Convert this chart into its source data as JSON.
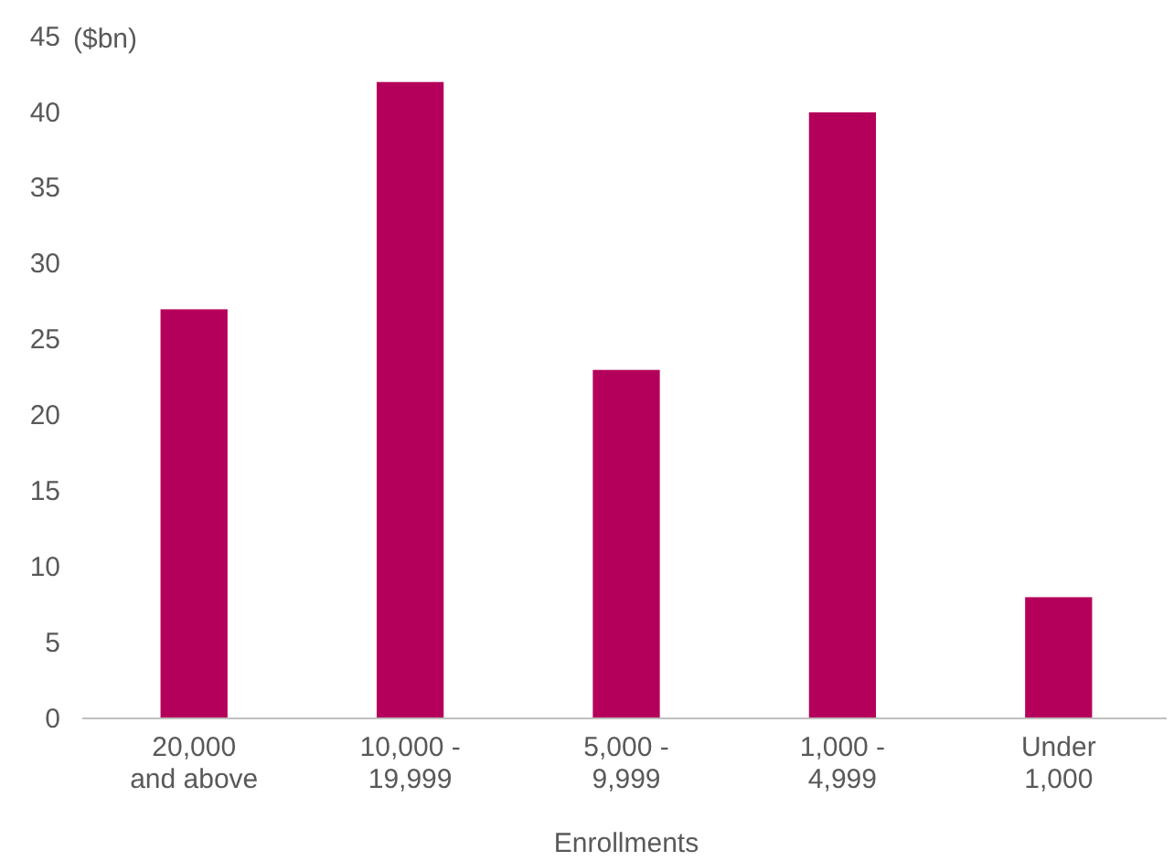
{
  "chart_data": {
    "type": "bar",
    "ylabel": "($bn)",
    "xlabel": "Enrollments",
    "categories": [
      "20,000\nand above",
      "10,000 -\n19,999",
      "5,000 -\n9,999",
      "1,000 -\n4,999",
      "Under\n1,000"
    ],
    "values": [
      27,
      42,
      23,
      40,
      8
    ],
    "color": "#b5005b",
    "ylim": [
      0,
      45
    ],
    "yticks": [
      0,
      5,
      10,
      15,
      20,
      25,
      30,
      35,
      40,
      45
    ],
    "grid": false
  }
}
